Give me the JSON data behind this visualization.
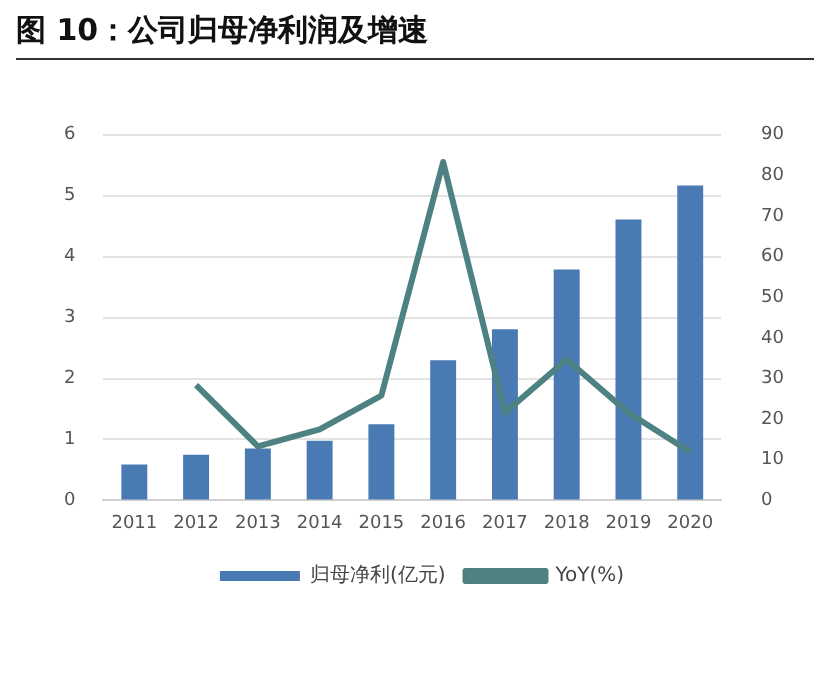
{
  "chart_data": {
    "type": "bar",
    "title": "图 10：公司归母净利润及增速",
    "categories": [
      "2011",
      "2012",
      "2013",
      "2014",
      "2015",
      "2016",
      "2017",
      "2018",
      "2019",
      "2020"
    ],
    "series": [
      {
        "name": "归母净利(亿元)",
        "color": "#4a7ab4",
        "values": [
          0.59,
          0.75,
          0.85,
          0.98,
          1.25,
          2.3,
          2.81,
          3.79,
          4.61,
          5.17
        ]
      },
      {
        "name": "YoY(%)",
        "type": "line",
        "axis": "y2",
        "color": "#4e8282",
        "values": [
          null,
          28.4,
          13.3,
          17.5,
          25.8,
          83.3,
          21.6,
          34.7,
          21.6,
          11.9
        ]
      }
    ],
    "ylim": [
      0,
      6
    ],
    "yticks": [
      0,
      1,
      2,
      3,
      4,
      5,
      6
    ],
    "y2lim": [
      0,
      90
    ],
    "y2ticks": [
      0,
      10,
      20,
      30,
      40,
      50,
      60,
      70,
      80,
      90
    ],
    "grid": "y",
    "legend": "bottom",
    "marker": "none",
    "line_style": "solid"
  }
}
